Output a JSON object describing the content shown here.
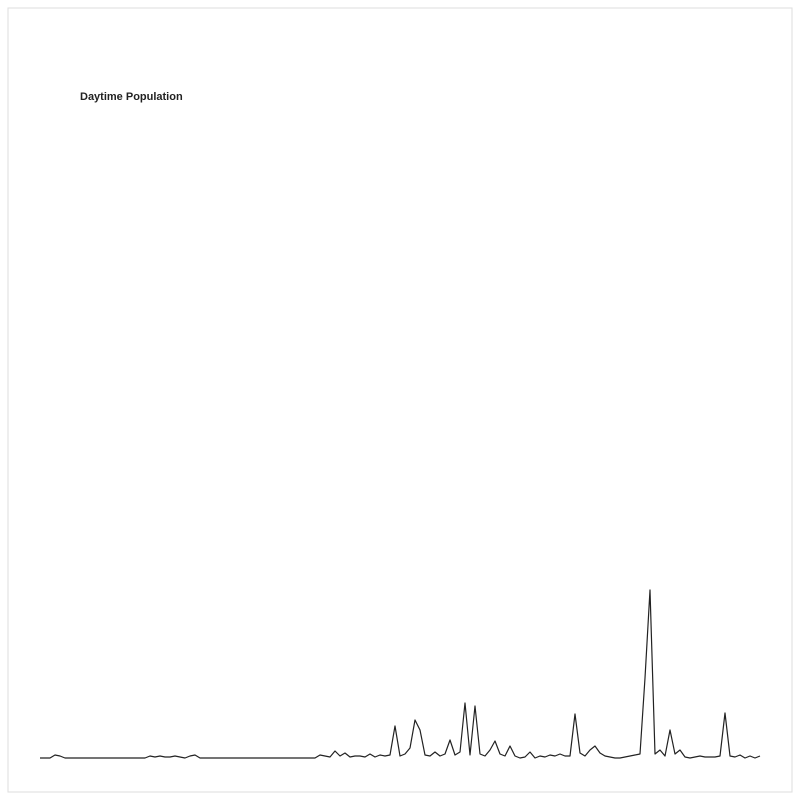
{
  "chart_data": {
    "type": "line",
    "title": "Daytime Population",
    "color": "#222222",
    "ylim": [
      0,
      700
    ],
    "values": [
      0,
      0,
      0,
      3,
      2,
      0,
      0,
      0,
      0,
      0,
      0,
      0,
      0,
      0,
      0,
      0,
      0,
      0,
      0,
      0,
      0,
      0,
      2,
      1,
      2,
      1,
      1,
      2,
      1,
      0,
      2,
      3,
      0,
      0,
      0,
      0,
      0,
      0,
      0,
      0,
      0,
      0,
      0,
      0,
      0,
      0,
      0,
      0,
      0,
      0,
      0,
      0,
      0,
      0,
      0,
      0,
      3,
      2,
      1,
      7,
      2,
      5,
      1,
      2,
      2,
      1,
      4,
      1,
      3,
      2,
      3,
      32,
      2,
      4,
      10,
      38,
      28,
      3,
      2,
      6,
      2,
      4,
      18,
      3,
      6,
      55,
      3,
      52,
      4,
      2,
      8,
      17,
      4,
      2,
      12,
      2,
      0,
      1,
      6,
      0,
      2,
      1,
      3,
      2,
      4,
      2,
      2,
      44,
      5,
      2,
      8,
      12,
      5,
      2,
      1,
      0,
      0,
      1,
      2,
      3,
      4,
      80,
      168,
      4,
      8,
      2,
      28,
      4,
      8,
      1,
      0,
      1,
      2,
      1,
      1,
      1,
      2,
      45,
      2,
      1,
      3,
      0,
      2,
      0,
      2
    ]
  }
}
